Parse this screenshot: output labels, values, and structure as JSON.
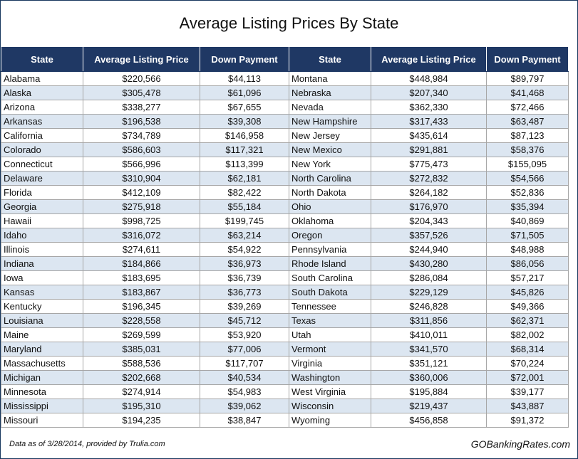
{
  "title": "Average Listing Prices By State",
  "colors": {
    "header_bg": "#1f3864",
    "row_shade": "#dce6f1",
    "border": "#a6a6a6"
  },
  "headers": [
    "State",
    "Average Listing Price",
    "Down Payment",
    "State",
    "Average Listing Price",
    "Down Payment"
  ],
  "rows": [
    [
      "Alabama",
      "$220,566",
      "$44,113",
      "Montana",
      "$448,984",
      "$89,797"
    ],
    [
      "Alaska",
      "$305,478",
      "$61,096",
      "Nebraska",
      "$207,340",
      "$41,468"
    ],
    [
      "Arizona",
      "$338,277",
      "$67,655",
      "Nevada",
      "$362,330",
      "$72,466"
    ],
    [
      "Arkansas",
      "$196,538",
      "$39,308",
      "New Hampshire",
      "$317,433",
      "$63,487"
    ],
    [
      "California",
      "$734,789",
      "$146,958",
      "New Jersey",
      "$435,614",
      "$87,123"
    ],
    [
      "Colorado",
      "$586,603",
      "$117,321",
      "New Mexico",
      "$291,881",
      "$58,376"
    ],
    [
      "Connecticut",
      "$566,996",
      "$113,399",
      "New York",
      "$775,473",
      "$155,095"
    ],
    [
      "Delaware",
      "$310,904",
      "$62,181",
      "North Carolina",
      "$272,832",
      "$54,566"
    ],
    [
      "Florida",
      "$412,109",
      "$82,422",
      "North Dakota",
      "$264,182",
      "$52,836"
    ],
    [
      "Georgia",
      "$275,918",
      "$55,184",
      "Ohio",
      "$176,970",
      "$35,394"
    ],
    [
      "Hawaii",
      "$998,725",
      "$199,745",
      "Oklahoma",
      "$204,343",
      "$40,869"
    ],
    [
      "Idaho",
      "$316,072",
      "$63,214",
      "Oregon",
      "$357,526",
      "$71,505"
    ],
    [
      "Illinois",
      "$274,611",
      "$54,922",
      "Pennsylvania",
      "$244,940",
      "$48,988"
    ],
    [
      "Indiana",
      "$184,866",
      "$36,973",
      "Rhode Island",
      "$430,280",
      "$86,056"
    ],
    [
      "Iowa",
      "$183,695",
      "$36,739",
      "South Carolina",
      "$286,084",
      "$57,217"
    ],
    [
      "Kansas",
      "$183,867",
      "$36,773",
      "South Dakota",
      "$229,129",
      "$45,826"
    ],
    [
      "Kentucky",
      "$196,345",
      "$39,269",
      "Tennessee",
      "$246,828",
      "$49,366"
    ],
    [
      "Louisiana",
      "$228,558",
      "$45,712",
      "Texas",
      "$311,856",
      "$62,371"
    ],
    [
      "Maine",
      "$269,599",
      "$53,920",
      "Utah",
      "$410,011",
      "$82,002"
    ],
    [
      "Maryland",
      "$385,031",
      "$77,006",
      "Vermont",
      "$341,570",
      "$68,314"
    ],
    [
      "Massachusetts",
      "$588,536",
      "$117,707",
      "Virginia",
      "$351,121",
      "$70,224"
    ],
    [
      "Michigan",
      "$202,668",
      "$40,534",
      "Washington",
      "$360,006",
      "$72,001"
    ],
    [
      "Minnesota",
      "$274,914",
      "$54,983",
      "West Virginia",
      "$195,884",
      "$39,177"
    ],
    [
      "Mississippi",
      "$195,310",
      "$39,062",
      "Wisconsin",
      "$219,437",
      "$43,887"
    ],
    [
      "Missouri",
      "$194,235",
      "$38,847",
      "Wyoming",
      "$456,858",
      "$91,372"
    ]
  ],
  "footer": {
    "note": "Data as of 3/28/2014, provided by Trulia.com",
    "brand": "GOBankingRates.com"
  }
}
